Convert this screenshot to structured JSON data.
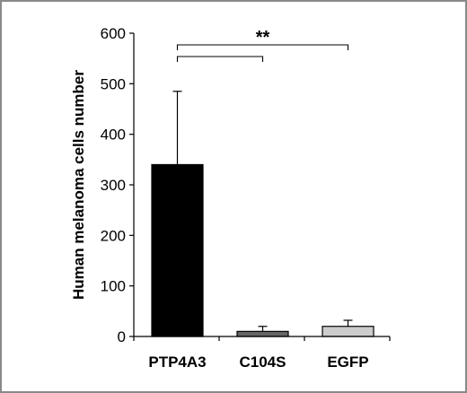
{
  "chart_data": {
    "type": "bar",
    "categories": [
      "PTP4A3",
      "C104S",
      "EGFP"
    ],
    "values": [
      340,
      10,
      20
    ],
    "errors": [
      145,
      10,
      12
    ],
    "ylabel": "Human melanoma cells number",
    "xlabel": "",
    "ylim": [
      0,
      600
    ],
    "yticks": [
      0,
      100,
      200,
      300,
      400,
      500,
      600
    ],
    "ytick_labels": [
      "0",
      "100",
      "200",
      "300",
      "400",
      "500",
      "600"
    ],
    "bar_colors": [
      "#000000",
      "#666666",
      "#cccccc"
    ],
    "grid": false,
    "legend": "none",
    "annotations": [
      {
        "text": "**",
        "from": "PTP4A3",
        "to": "EGFP"
      },
      {
        "text": "",
        "from": "PTP4A3",
        "to": "C104S"
      }
    ]
  }
}
